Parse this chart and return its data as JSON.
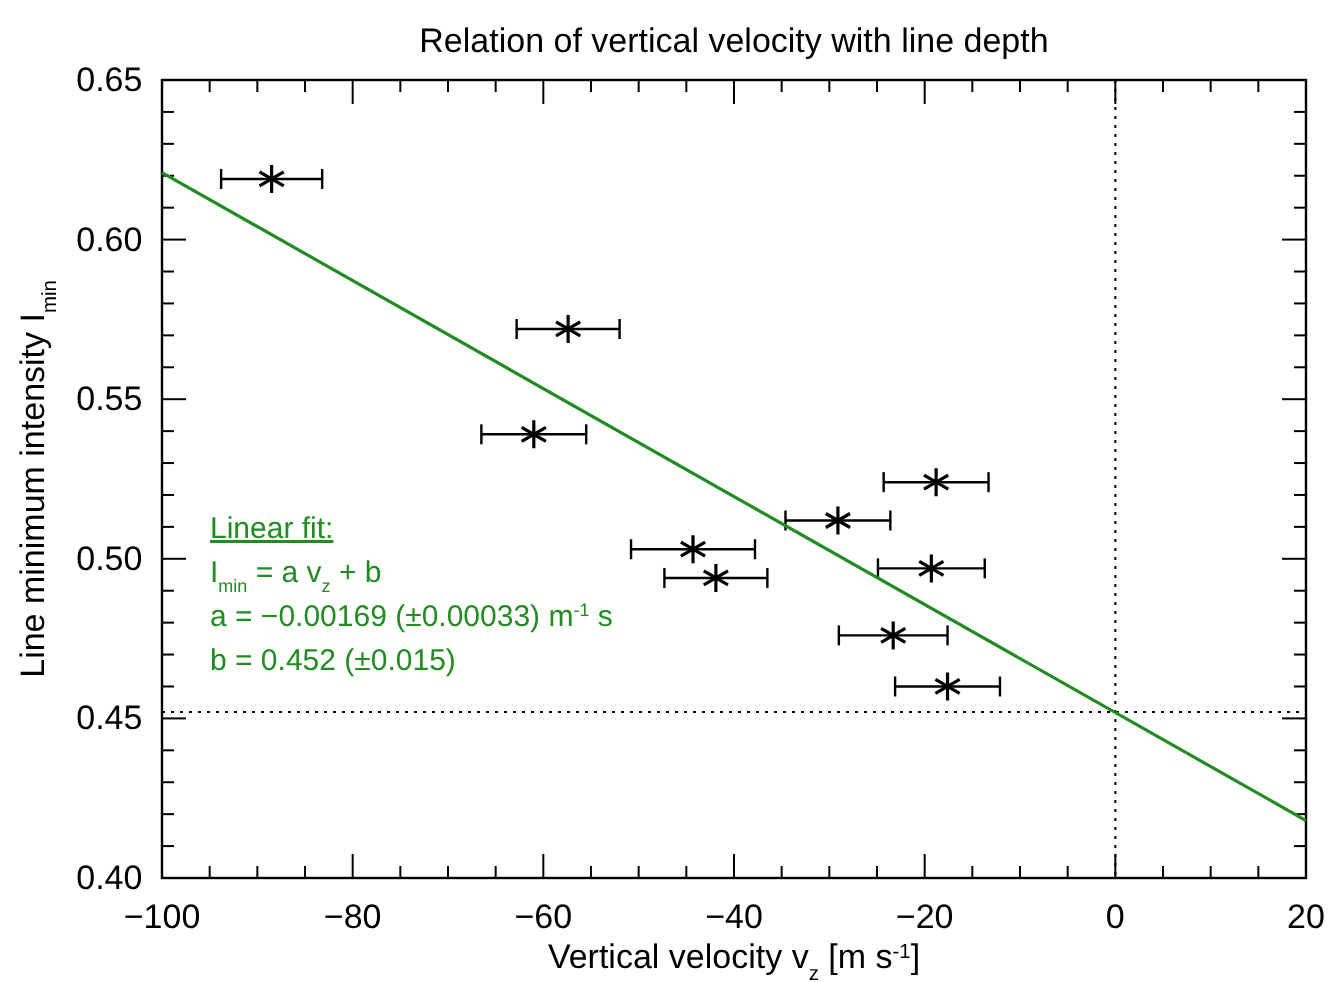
{
  "chart_data": {
    "type": "scatter",
    "title": "Relation of vertical velocity with line depth",
    "xlabel": "Vertical velocity v$_{z}$ [m s$^{-1}$]",
    "ylabel": "Line minimum intensity  I$_{min}$",
    "xlim": [
      -100,
      20
    ],
    "ylim": [
      0.4,
      0.65
    ],
    "xticks": [
      -100,
      {
        "value": -95,
        "label": null
      },
      {
        "value": -90,
        "label": null
      },
      {
        "value": -85,
        "label": null
      },
      -80,
      {
        "value": -75,
        "label": null
      },
      {
        "value": -70,
        "label": null
      },
      {
        "value": -65,
        "label": null
      },
      -60,
      {
        "value": -55,
        "label": null
      },
      {
        "value": -50,
        "label": null
      },
      {
        "value": -45,
        "label": null
      },
      -40,
      {
        "value": -35,
        "label": null
      },
      {
        "value": -30,
        "label": null
      },
      {
        "value": -25,
        "label": null
      },
      -20,
      {
        "value": -15,
        "label": null
      },
      {
        "value": -10,
        "label": null
      },
      {
        "value": -5,
        "label": null
      },
      0,
      {
        "value": 5,
        "label": null
      },
      {
        "value": 10,
        "label": null
      },
      {
        "value": 15,
        "label": null
      },
      20
    ],
    "yticks": [
      {
        "value": 0.4,
        "label": "0.40"
      },
      0.45,
      {
        "value": 0.5,
        "label": "0.50"
      },
      0.55,
      {
        "value": 0.6,
        "label": "0.60"
      },
      0.65
    ],
    "series": [
      {
        "marker": "cross",
        "color": "#000000",
        "x": [
          -88.5,
          -57.4,
          -61.0,
          -18.8,
          -29.1,
          -44.3,
          -41.9,
          -19.3,
          -23.3,
          -17.6
        ],
        "values": [
          0.619,
          0.572,
          0.539,
          0.524,
          0.512,
          0.503,
          0.494,
          0.497,
          0.476,
          0.46
        ],
        "xerrors": [
          5.3,
          5.4,
          5.5,
          5.5,
          5.5,
          6.5,
          5.4,
          5.6,
          5.7,
          5.5
        ]
      },
      {
        "type": "line",
        "marker": "none",
        "color": "#228b22",
        "x": [
          -100,
          20
        ],
        "values": [
          0.621,
          0.418
        ]
      }
    ],
    "ref_lines": [
      {
        "axis": "x",
        "value": 0,
        "line_style": "dotted",
        "color": "#000000"
      },
      {
        "axis": "y",
        "value": 0.452,
        "line_style": "dotted",
        "color": "#000000"
      }
    ],
    "annotations": [
      "Linear fit:",
      "I$_{min}$ = a v$_{z}$ + b",
      "a = −0.00169 (±0.00033) m$^{-1}$ s",
      "b = 0.452 (±0.015)"
    ]
  }
}
